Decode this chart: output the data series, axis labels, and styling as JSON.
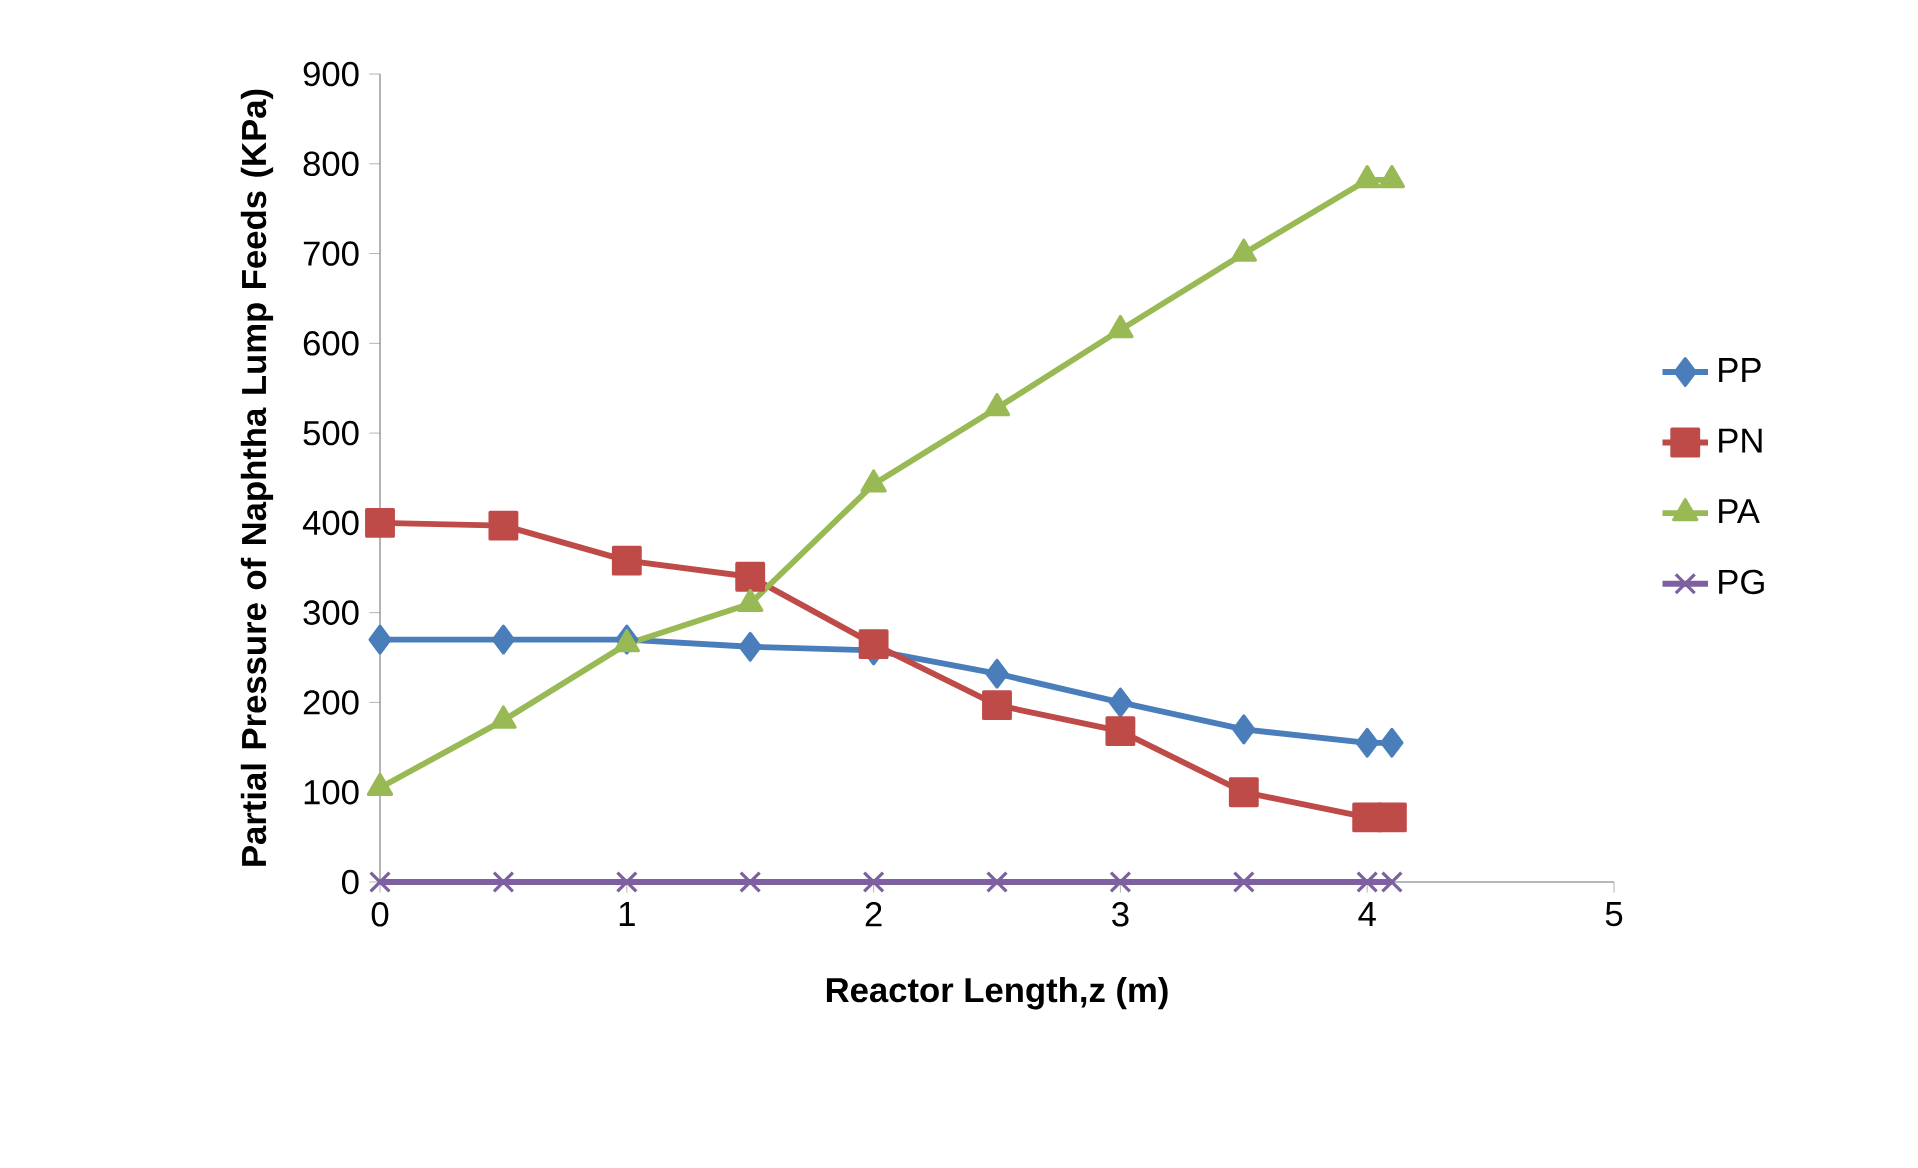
{
  "chart_data": {
    "type": "line",
    "xlabel": "Reactor Length,z (m)",
    "ylabel": "Partial Pressure of Naphtha Lump Feeds (KPa)",
    "xlim": [
      0,
      5
    ],
    "xticks": [
      0,
      1,
      2,
      3,
      4,
      5
    ],
    "ylim": [
      0,
      900
    ],
    "yticks": [
      0,
      100,
      200,
      300,
      400,
      500,
      600,
      700,
      800,
      900
    ],
    "grid": false,
    "legend": "right",
    "line_style": "solid",
    "x": [
      0,
      0.5,
      1,
      1.5,
      2,
      2.5,
      3,
      3.5,
      4,
      4.1
    ],
    "series": [
      {
        "name": "PP",
        "color": "#4a7ebb",
        "marker": "diamond",
        "values": [
          270,
          270,
          270,
          262,
          258,
          232,
          200,
          170,
          155,
          155
        ]
      },
      {
        "name": "PN",
        "color": "#be4b48",
        "marker": "square",
        "values": [
          400,
          397,
          358,
          340,
          265,
          197,
          168,
          100,
          72,
          72
        ]
      },
      {
        "name": "PA",
        "color": "#98b954",
        "marker": "triangle",
        "values": [
          105,
          180,
          265,
          310,
          443,
          528,
          615,
          700,
          782,
          782
        ]
      },
      {
        "name": "PG",
        "color": "#7d60a0",
        "marker": "cross",
        "values": [
          0,
          0,
          0,
          0,
          0,
          0,
          0,
          0,
          0,
          0
        ]
      }
    ]
  }
}
